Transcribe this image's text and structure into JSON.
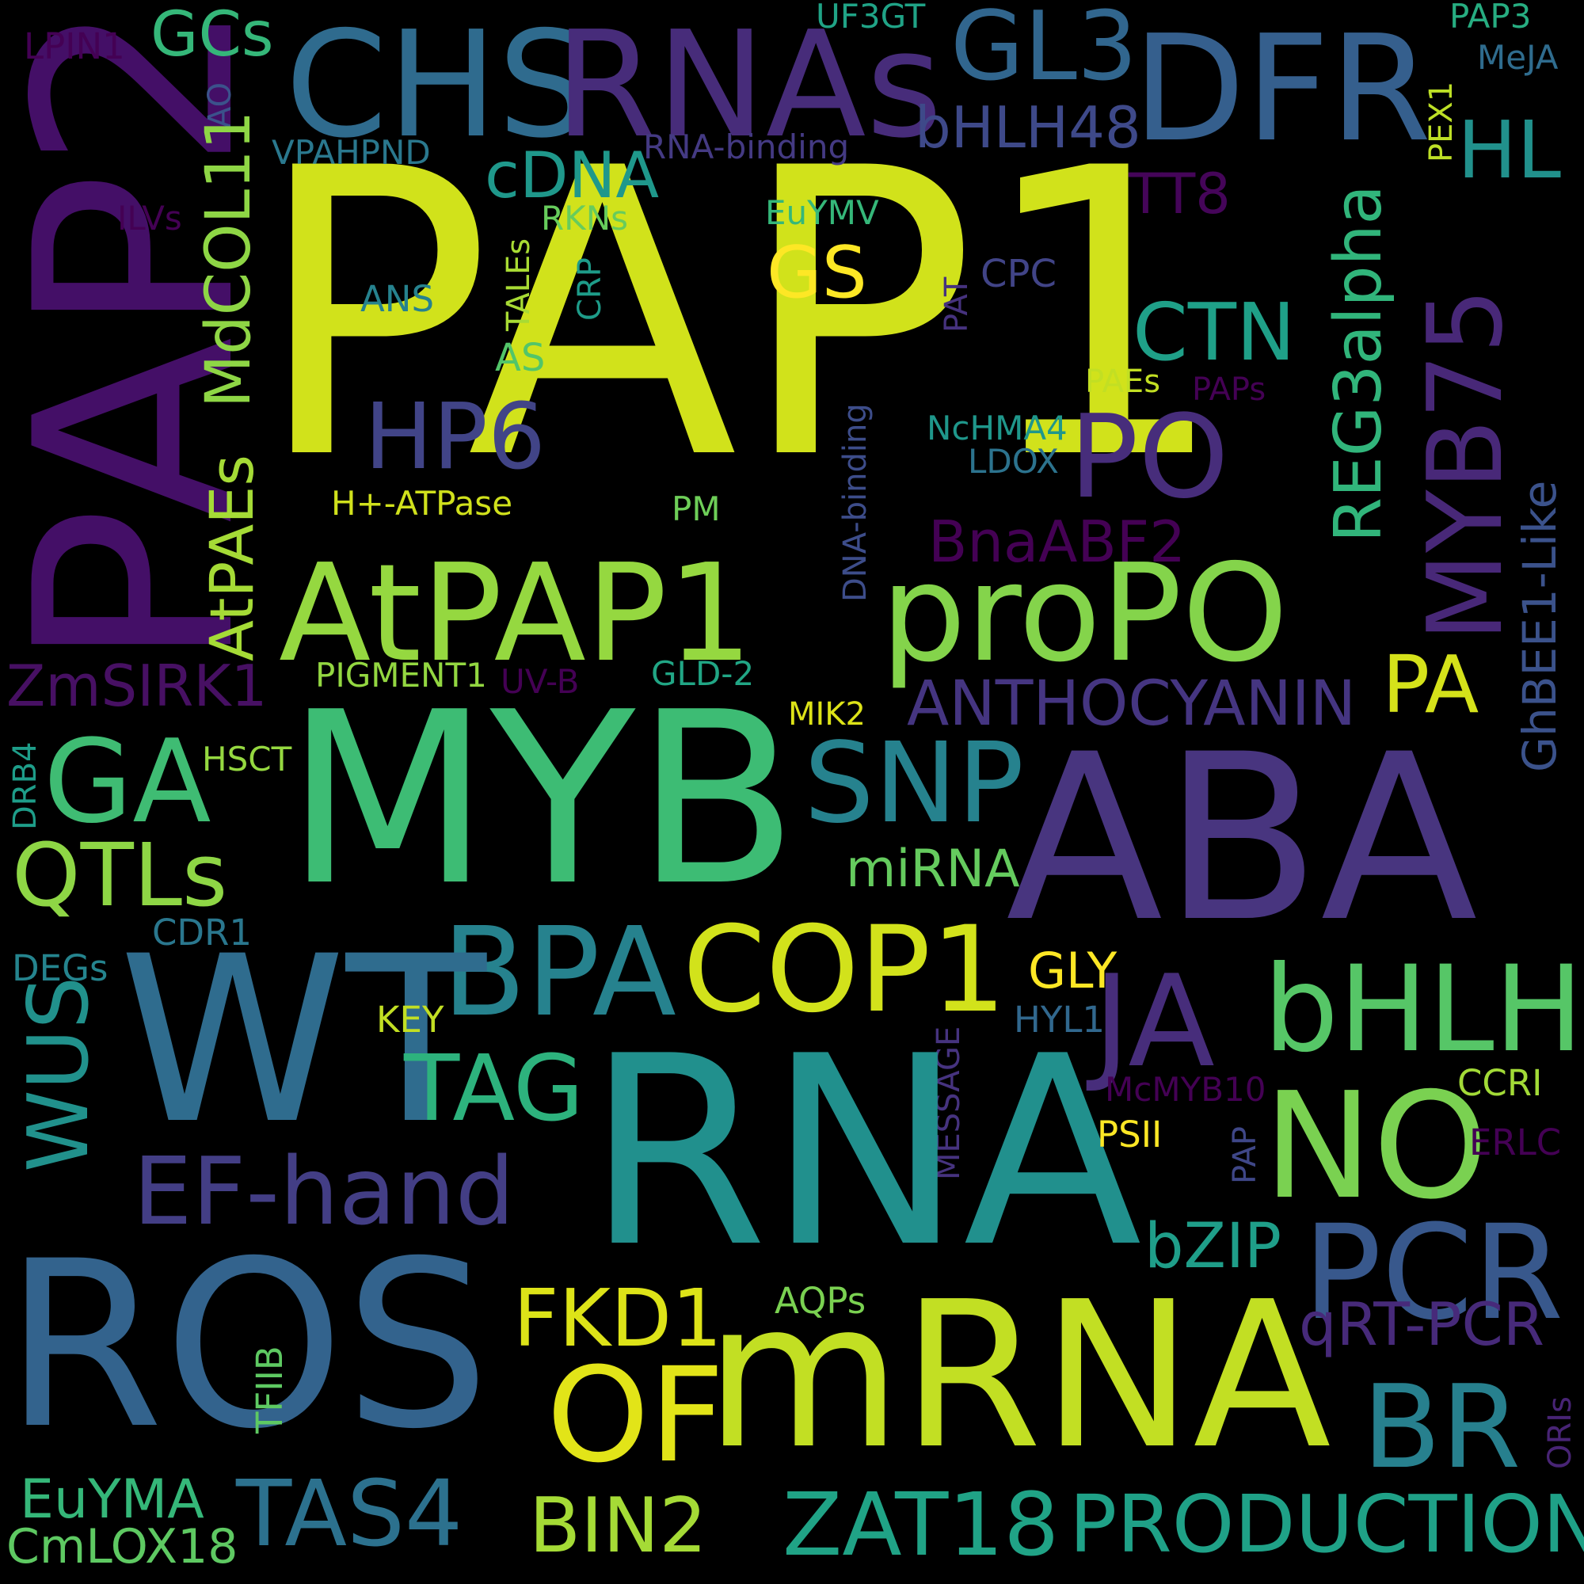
{
  "words": [
    {
      "t": "PAP1",
      "c": "#d1e21b"
    },
    {
      "t": "PAP2",
      "c": "#440f67"
    },
    {
      "t": "CHS",
      "c": "#2f6b8e"
    },
    {
      "t": "RNAs",
      "c": "#472c7a"
    },
    {
      "t": "DFR",
      "c": "#355f8d"
    },
    {
      "t": "GL3",
      "c": "#31668e"
    },
    {
      "t": "GCs",
      "c": "#35b779"
    },
    {
      "t": "LPIN1",
      "c": "#440154"
    },
    {
      "t": "UF3GT",
      "c": "#20a386"
    },
    {
      "t": "PAP3",
      "c": "#27ad81"
    },
    {
      "t": "MeJA",
      "c": "#2f6c8e"
    },
    {
      "t": "AO",
      "c": "#3b528b"
    },
    {
      "t": "bHLH48",
      "c": "#3e4989"
    },
    {
      "t": "VPAHPND",
      "c": "#2a788e"
    },
    {
      "t": "RNA-binding",
      "c": "#443a83"
    },
    {
      "t": "PEX1",
      "c": "#bddf26"
    },
    {
      "t": "HL",
      "c": "#21918c"
    },
    {
      "t": "cDNA",
      "c": "#1f988b"
    },
    {
      "t": "TT8",
      "c": "#450559"
    },
    {
      "t": "MdCOL11",
      "c": "#8ed645"
    },
    {
      "t": "ILVs",
      "c": "#440154"
    },
    {
      "t": "RKNs",
      "c": "#67cc5c"
    },
    {
      "t": "EuYMV",
      "c": "#35b779"
    },
    {
      "t": "MYB75",
      "c": "#482878"
    },
    {
      "t": "REG3alpha",
      "c": "#31b57b"
    },
    {
      "t": "GS",
      "c": "#fde725"
    },
    {
      "t": "CTN",
      "c": "#1fa088"
    },
    {
      "t": "TALEs",
      "c": "#a8db34"
    },
    {
      "t": "CRP",
      "c": "#1e9c89"
    },
    {
      "t": "PAT",
      "c": "#46327e"
    },
    {
      "t": "CPC",
      "c": "#414487"
    },
    {
      "t": "ANS",
      "c": "#26828e"
    },
    {
      "t": "AS",
      "c": "#52c569"
    },
    {
      "t": "HP6",
      "c": "#414487"
    },
    {
      "t": "PO",
      "c": "#472d7b"
    },
    {
      "t": "GhBEE1-Like",
      "c": "#3b528b"
    },
    {
      "t": "PAEs",
      "c": "#c2df23"
    },
    {
      "t": "PAPs",
      "c": "#440154"
    },
    {
      "t": "DNA-binding",
      "c": "#3d4d8a"
    },
    {
      "t": "NcHMA4",
      "c": "#1f978b"
    },
    {
      "t": "LDOX",
      "c": "#2c738e"
    },
    {
      "t": "AtPAEs",
      "c": "#a5db36"
    },
    {
      "t": "H+-ATPase",
      "c": "#d0e11c"
    },
    {
      "t": "PM",
      "c": "#6ece58"
    },
    {
      "t": "BnaABF2",
      "c": "#440154"
    },
    {
      "t": "AtPAP1",
      "c": "#95d840"
    },
    {
      "t": "proPO",
      "c": "#84d44b"
    },
    {
      "t": "ZmSIRK1",
      "c": "#471063"
    },
    {
      "t": "PIGMENT1",
      "c": "#93d741"
    },
    {
      "t": "UV-B",
      "c": "#440154"
    },
    {
      "t": "GLD-2",
      "c": "#21a685"
    },
    {
      "t": "ANTHOCYANIN",
      "c": "#453581"
    },
    {
      "t": "PA",
      "c": "#d5e21a"
    },
    {
      "t": "MIK2",
      "c": "#dde318"
    },
    {
      "t": "GA",
      "c": "#3fbc73"
    },
    {
      "t": "MYB",
      "c": "#3dbc74"
    },
    {
      "t": "SNP",
      "c": "#26828e"
    },
    {
      "t": "ABA",
      "c": "#48357f"
    },
    {
      "t": "HSCT",
      "c": "#95d840"
    },
    {
      "t": "DRB4",
      "c": "#1e9d89"
    },
    {
      "t": "miRNA",
      "c": "#65cb5e"
    },
    {
      "t": "QTLs",
      "c": "#8ed645"
    },
    {
      "t": "CDR1",
      "c": "#2a778e"
    },
    {
      "t": "BPA",
      "c": "#26828e"
    },
    {
      "t": "COP1",
      "c": "#d2e21b"
    },
    {
      "t": "GLY",
      "c": "#fde725"
    },
    {
      "t": "DEGs",
      "c": "#25848e"
    },
    {
      "t": "WT",
      "c": "#2f6c8e"
    },
    {
      "t": "JA",
      "c": "#472d7b"
    },
    {
      "t": "bHLH",
      "c": "#56c667"
    },
    {
      "t": "KEY",
      "c": "#c2df23"
    },
    {
      "t": "HYL1",
      "c": "#31688e"
    },
    {
      "t": "WUS",
      "c": "#21918c"
    },
    {
      "t": "TAG",
      "c": "#2db27d"
    },
    {
      "t": "MESSAGE",
      "c": "#46337f"
    },
    {
      "t": "McMYB10",
      "c": "#440154"
    },
    {
      "t": "CCRI",
      "c": "#a2da37"
    },
    {
      "t": "RNA",
      "c": "#21908d"
    },
    {
      "t": "NO",
      "c": "#7ad151"
    },
    {
      "t": "EF-hand",
      "c": "#433e85"
    },
    {
      "t": "PSII",
      "c": "#fde725"
    },
    {
      "t": "PAP",
      "c": "#3f4788"
    },
    {
      "t": "ERLC",
      "c": "#440154"
    },
    {
      "t": "bZIP",
      "c": "#1f9e89"
    },
    {
      "t": "PCR",
      "c": "#38588c"
    },
    {
      "t": "ROS",
      "c": "#33638d"
    },
    {
      "t": "FKD1",
      "c": "#dde318"
    },
    {
      "t": "qRT-PCR",
      "c": "#472a7a"
    },
    {
      "t": "OF",
      "c": "#e2e418"
    },
    {
      "t": "mRNA",
      "c": "#c2df23"
    },
    {
      "t": "AQPs",
      "c": "#7ad151"
    },
    {
      "t": "TFIIB",
      "c": "#5ec962"
    },
    {
      "t": "BR",
      "c": "#27808e"
    },
    {
      "t": "ORIs",
      "c": "#482475"
    },
    {
      "t": "EuYMA",
      "c": "#35b779"
    },
    {
      "t": "CmLOX18",
      "c": "#5ec962"
    },
    {
      "t": "TAS4",
      "c": "#2c718e"
    },
    {
      "t": "BIN2",
      "c": "#a5db36"
    },
    {
      "t": "ZAT18",
      "c": "#20a386"
    },
    {
      "t": "PRODUCTION",
      "c": "#1fa187"
    }
  ]
}
